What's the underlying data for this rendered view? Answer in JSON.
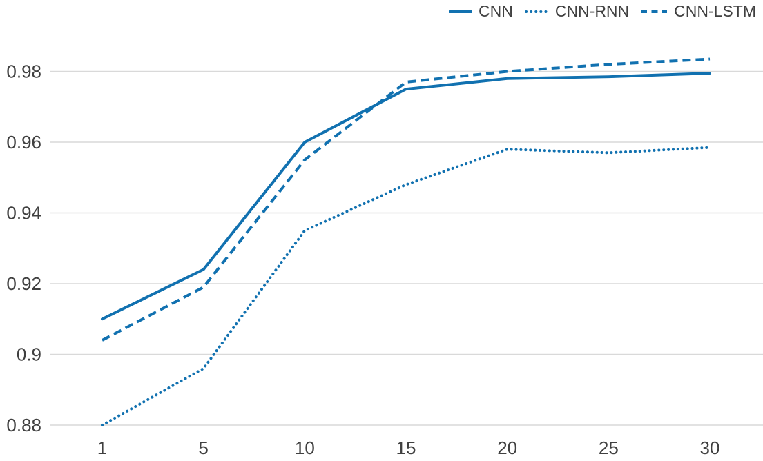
{
  "chart_data": {
    "type": "line",
    "title": "",
    "xlabel": "",
    "ylabel": "",
    "categories": [
      1,
      5,
      10,
      15,
      20,
      25,
      30
    ],
    "x_tick_labels": [
      "1",
      "5",
      "10",
      "15",
      "20",
      "25",
      "30"
    ],
    "y_ticks": [
      {
        "value": 0.88,
        "label": "0.88"
      },
      {
        "value": 0.9,
        "label": "0.9"
      },
      {
        "value": 0.92,
        "label": "0.92"
      },
      {
        "value": 0.94,
        "label": "0.94"
      },
      {
        "value": 0.96,
        "label": "0.96"
      },
      {
        "value": 0.98,
        "label": "0.98"
      }
    ],
    "ylim": [
      0.88,
      0.985
    ],
    "grid": "horizontal-only",
    "legend_position": "top-right",
    "series": [
      {
        "name": "CNN",
        "line_style": "solid",
        "values": [
          0.91,
          0.924,
          0.96,
          0.975,
          0.978,
          0.9785,
          0.9795
        ]
      },
      {
        "name": "CNN-RNN",
        "line_style": "dotted",
        "values": [
          0.88,
          0.896,
          0.935,
          0.948,
          0.958,
          0.957,
          0.9585
        ]
      },
      {
        "name": "CNN-LSTM",
        "line_style": "dashed",
        "values": [
          0.904,
          0.919,
          0.955,
          0.977,
          0.98,
          0.982,
          0.9835
        ]
      }
    ],
    "colors": {
      "series_line": "#1171b0",
      "gridline": "#d9d9d9",
      "tick_text": "#404040",
      "background": "#ffffff"
    }
  }
}
